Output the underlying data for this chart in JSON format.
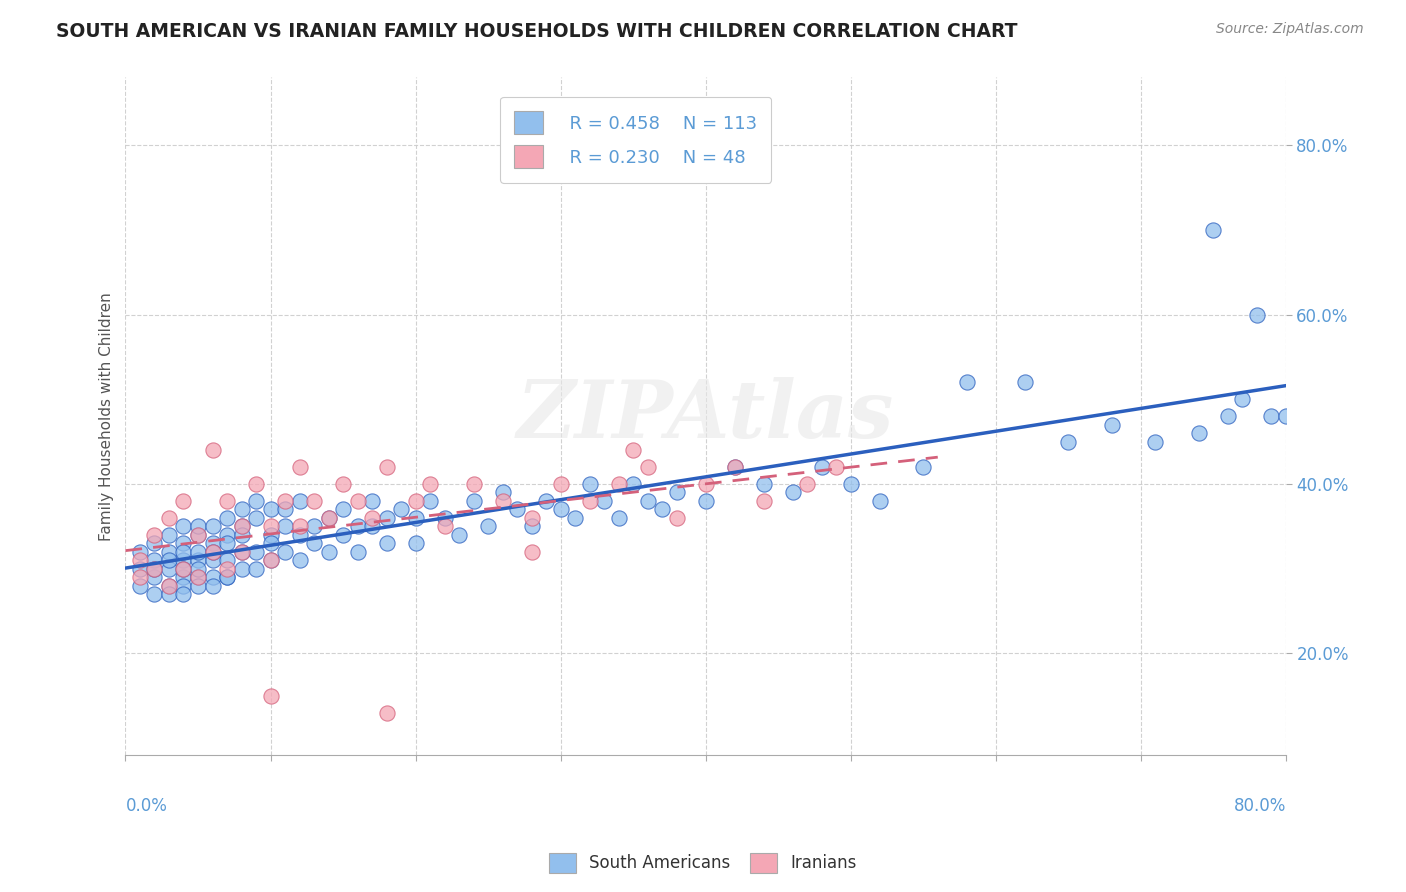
{
  "title": "SOUTH AMERICAN VS IRANIAN FAMILY HOUSEHOLDS WITH CHILDREN CORRELATION CHART",
  "source": "Source: ZipAtlas.com",
  "ylabel": "Family Households with Children",
  "xmin": 0.0,
  "xmax": 0.8,
  "ymin": 0.08,
  "ymax": 0.88,
  "ytick_values": [
    0.2,
    0.4,
    0.6,
    0.8
  ],
  "legend_r1": "R = 0.458",
  "legend_n1": "N = 113",
  "legend_r2": "R = 0.230",
  "legend_n2": "N = 48",
  "blue_color": "#92BFED",
  "pink_color": "#F4A7B5",
  "blue_line_color": "#2B5FBE",
  "pink_line_color": "#D4607A",
  "sa_x": [
    0.01,
    0.01,
    0.01,
    0.02,
    0.02,
    0.02,
    0.02,
    0.02,
    0.03,
    0.03,
    0.03,
    0.03,
    0.03,
    0.03,
    0.04,
    0.04,
    0.04,
    0.04,
    0.04,
    0.04,
    0.04,
    0.04,
    0.05,
    0.05,
    0.05,
    0.05,
    0.05,
    0.05,
    0.05,
    0.06,
    0.06,
    0.06,
    0.06,
    0.06,
    0.06,
    0.07,
    0.07,
    0.07,
    0.07,
    0.07,
    0.07,
    0.08,
    0.08,
    0.08,
    0.08,
    0.08,
    0.09,
    0.09,
    0.09,
    0.09,
    0.1,
    0.1,
    0.1,
    0.1,
    0.11,
    0.11,
    0.11,
    0.12,
    0.12,
    0.12,
    0.13,
    0.13,
    0.14,
    0.14,
    0.15,
    0.15,
    0.16,
    0.16,
    0.17,
    0.17,
    0.18,
    0.18,
    0.19,
    0.2,
    0.2,
    0.21,
    0.22,
    0.23,
    0.24,
    0.25,
    0.26,
    0.27,
    0.28,
    0.29,
    0.3,
    0.31,
    0.32,
    0.33,
    0.34,
    0.35,
    0.36,
    0.37,
    0.38,
    0.4,
    0.42,
    0.44,
    0.46,
    0.48,
    0.5,
    0.52,
    0.55,
    0.58,
    0.62,
    0.65,
    0.68,
    0.71,
    0.74,
    0.76,
    0.78,
    0.79,
    0.8,
    0.77,
    0.75
  ],
  "sa_y": [
    0.3,
    0.28,
    0.32,
    0.29,
    0.31,
    0.27,
    0.33,
    0.3,
    0.28,
    0.32,
    0.3,
    0.27,
    0.34,
    0.31,
    0.29,
    0.33,
    0.31,
    0.28,
    0.35,
    0.3,
    0.27,
    0.32,
    0.31,
    0.29,
    0.34,
    0.32,
    0.28,
    0.35,
    0.3,
    0.33,
    0.31,
    0.29,
    0.35,
    0.32,
    0.28,
    0.34,
    0.31,
    0.29,
    0.36,
    0.33,
    0.29,
    0.35,
    0.32,
    0.3,
    0.37,
    0.34,
    0.36,
    0.32,
    0.3,
    0.38,
    0.34,
    0.31,
    0.37,
    0.33,
    0.35,
    0.32,
    0.37,
    0.34,
    0.31,
    0.38,
    0.35,
    0.33,
    0.36,
    0.32,
    0.37,
    0.34,
    0.35,
    0.32,
    0.38,
    0.35,
    0.36,
    0.33,
    0.37,
    0.36,
    0.33,
    0.38,
    0.36,
    0.34,
    0.38,
    0.35,
    0.39,
    0.37,
    0.35,
    0.38,
    0.37,
    0.36,
    0.4,
    0.38,
    0.36,
    0.4,
    0.38,
    0.37,
    0.39,
    0.38,
    0.42,
    0.4,
    0.39,
    0.42,
    0.4,
    0.38,
    0.42,
    0.52,
    0.52,
    0.45,
    0.47,
    0.45,
    0.46,
    0.48,
    0.6,
    0.48,
    0.48,
    0.5,
    0.7
  ],
  "ir_x": [
    0.01,
    0.01,
    0.02,
    0.02,
    0.03,
    0.03,
    0.04,
    0.04,
    0.05,
    0.05,
    0.06,
    0.06,
    0.07,
    0.07,
    0.08,
    0.08,
    0.09,
    0.1,
    0.1,
    0.11,
    0.12,
    0.12,
    0.13,
    0.14,
    0.15,
    0.16,
    0.17,
    0.18,
    0.2,
    0.21,
    0.22,
    0.24,
    0.26,
    0.28,
    0.3,
    0.32,
    0.34,
    0.36,
    0.38,
    0.4,
    0.42,
    0.44,
    0.47,
    0.49,
    0.28,
    0.35,
    0.18,
    0.1
  ],
  "ir_y": [
    0.31,
    0.29,
    0.34,
    0.3,
    0.36,
    0.28,
    0.38,
    0.3,
    0.34,
    0.29,
    0.44,
    0.32,
    0.38,
    0.3,
    0.35,
    0.32,
    0.4,
    0.35,
    0.31,
    0.38,
    0.35,
    0.42,
    0.38,
    0.36,
    0.4,
    0.38,
    0.36,
    0.42,
    0.38,
    0.4,
    0.35,
    0.4,
    0.38,
    0.36,
    0.4,
    0.38,
    0.4,
    0.42,
    0.36,
    0.4,
    0.42,
    0.38,
    0.4,
    0.42,
    0.32,
    0.44,
    0.13,
    0.15
  ]
}
